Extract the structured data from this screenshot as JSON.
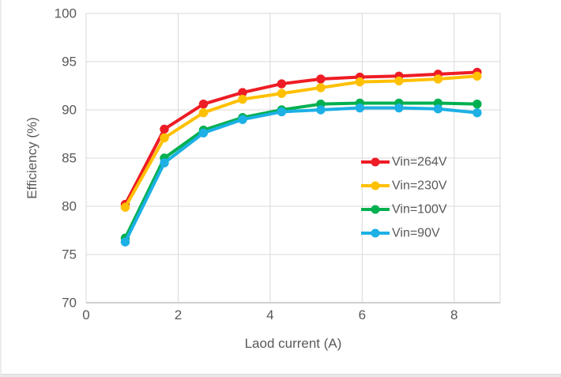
{
  "chart_data": {
    "type": "line",
    "title": "",
    "xlabel": "Laod current (A)",
    "ylabel": "Efficiency (%)",
    "xlim": [
      0,
      9
    ],
    "ylim": [
      70,
      100
    ],
    "x_ticks": [
      0,
      2,
      4,
      6,
      8
    ],
    "y_ticks": [
      70,
      75,
      80,
      85,
      90,
      95,
      100
    ],
    "grid": true,
    "legend_position": "middle-right",
    "x": [
      0.85,
      1.7,
      2.55,
      3.4,
      4.25,
      5.1,
      5.95,
      6.8,
      7.65,
      8.5
    ],
    "series": [
      {
        "name": "Vin=264V",
        "color": "#ee1c25",
        "values": [
          80.2,
          88.0,
          90.6,
          91.8,
          92.7,
          93.2,
          93.4,
          93.5,
          93.7,
          93.9
        ]
      },
      {
        "name": "Vin=230V",
        "color": "#ffc000",
        "values": [
          79.9,
          87.1,
          89.7,
          91.1,
          91.7,
          92.3,
          92.9,
          93.0,
          93.2,
          93.5
        ]
      },
      {
        "name": "Vin=100V",
        "color": "#00b050",
        "values": [
          76.7,
          85.0,
          87.9,
          89.2,
          90.0,
          90.6,
          90.7,
          90.7,
          90.7,
          90.6
        ]
      },
      {
        "name": "Vin=90V",
        "color": "#1cb0e5",
        "values": [
          76.3,
          84.5,
          87.6,
          89.0,
          89.8,
          90.0,
          90.2,
          90.2,
          90.1,
          89.7
        ]
      }
    ],
    "colors": {
      "text": "#595959",
      "grid": "#d9d9d9",
      "axis": "#c0c0c0",
      "background": "#ffffff"
    }
  }
}
